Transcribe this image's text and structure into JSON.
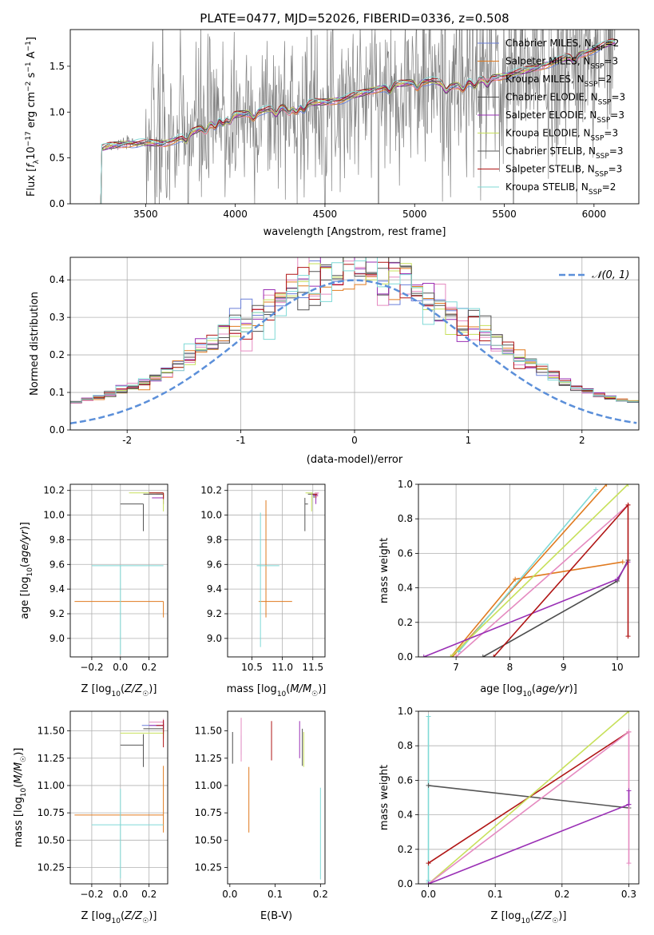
{
  "figure_title": "PLATE=0477, MJD=52026, FIBERID=0336, z=0.508",
  "colors": {
    "data": "#808080",
    "normal": "#5b8fd9",
    "grid": "#b0b0b0",
    "series": [
      "#6a7fd9",
      "#e07a1f",
      "#e58ac0",
      "#4d4d4d",
      "#9a2fb5",
      "#c7e05a",
      "#555555",
      "#b01515",
      "#7fd9d6"
    ]
  },
  "model_series": [
    "Chabrier MILES, N_SSP=2",
    "Salpeter MILES, N_SSP=3",
    "Kroupa MILES, N_SSP=2",
    "Chabrier ELODIE, N_SSP=3",
    "Salpeter ELODIE, N_SSP=3",
    "Kroupa ELODIE, N_SSP=3",
    "Chabrier STELIB, N_SSP=3",
    "Salpeter STELIB, N_SSP=3",
    "Kroupa STELIB, N_SSP=2"
  ],
  "chart_data": [
    {
      "id": "spectrum",
      "type": "line",
      "title": "PLATE=0477, MJD=52026, FIBERID=0336, z=0.508",
      "xlabel": "wavelength [Angstrom, rest frame]",
      "ylabel": "Flux [f_λ 10^-17 erg cm^-2 s^-1 A^-1]",
      "xlim": [
        3080,
        6250
      ],
      "ylim": [
        0,
        1.9
      ],
      "xticks": [
        3500,
        4000,
        4500,
        5000,
        5500,
        6000
      ],
      "yticks": [
        0.0,
        0.5,
        1.0,
        1.5
      ],
      "grid": false,
      "legend": "upper-right",
      "data_range": [
        3220,
        6120
      ],
      "model_continuum": {
        "x": [
          3220,
          3255,
          3256,
          3300,
          3400,
          3500,
          3600,
          3700,
          3800,
          3900,
          4000,
          4100,
          4200,
          4300,
          4400,
          4500,
          4600,
          4700,
          4800,
          4900,
          5000,
          5100,
          5200,
          5300,
          5400,
          5500,
          5600,
          5700,
          5800,
          5900,
          6000,
          6100
        ],
        "y": [
          0.0,
          0.0,
          0.6,
          0.63,
          0.66,
          0.66,
          0.66,
          0.72,
          0.82,
          0.92,
          0.97,
          1.0,
          1.03,
          1.06,
          1.09,
          1.11,
          1.14,
          1.2,
          1.26,
          1.3,
          1.33,
          1.34,
          1.28,
          1.33,
          1.36,
          1.4,
          1.44,
          1.5,
          1.56,
          1.62,
          1.68,
          1.76
        ]
      },
      "series_names": [
        "Chabrier MILES, N_SSP=2",
        "Salpeter MILES, N_SSP=3",
        "Kroupa MILES, N_SSP=2",
        "Chabrier ELODIE, N_SSP=3",
        "Salpeter ELODIE, N_SSP=3",
        "Kroupa ELODIE, N_SSP=3",
        "Chabrier STELIB, N_SSP=3",
        "Salpeter STELIB, N_SSP=3",
        "Kroupa STELIB, N_SSP=2"
      ]
    },
    {
      "id": "residuals",
      "type": "histogram",
      "xlabel": "(data-model)/error",
      "ylabel": "Normed distribution",
      "xlim": [
        -2.5,
        2.5
      ],
      "ylim": [
        0,
        0.46
      ],
      "xticks": [
        -2,
        -1,
        0,
        1,
        2
      ],
      "yticks": [
        0.0,
        0.1,
        0.2,
        0.3,
        0.4
      ],
      "grid": true,
      "legend": "upper-right",
      "normal_label": "𝒩(0, 1)",
      "bin_width": 0.1
    },
    {
      "id": "age-vs-Z",
      "type": "errorbar",
      "xlabel": "Z [log10(Z/Z☉)]",
      "ylabel": "age [log10(age/yr)]",
      "xlim": [
        -0.35,
        0.33
      ],
      "ylim": [
        8.85,
        10.25
      ],
      "xticks": [
        -0.2,
        0.0,
        0.2
      ],
      "yticks": [
        9.0,
        9.2,
        9.4,
        9.6,
        9.8,
        10.0,
        10.2
      ],
      "grid": true,
      "points": [
        {
          "s": 0,
          "x": 0.3,
          "y": 10.18,
          "xe": [
            0.1,
            0.0
          ],
          "ye": [
            0.03,
            0.0
          ]
        },
        {
          "s": 1,
          "x": 0.3,
          "y": 9.3,
          "xe": [
            0.62,
            0.0
          ],
          "ye": [
            0.13,
            0.0
          ]
        },
        {
          "s": 2,
          "x": 0.3,
          "y": 10.17,
          "xe": [
            0.05,
            0.0
          ],
          "ye": [
            0.03,
            0.0
          ]
        },
        {
          "s": 3,
          "x": 0.3,
          "y": 10.17,
          "xe": [
            0.14,
            0.0
          ],
          "ye": [
            0.03,
            0.0
          ]
        },
        {
          "s": 4,
          "x": 0.3,
          "y": 10.14,
          "xe": [
            0.08,
            0.0
          ],
          "ye": [
            0.05,
            0.0
          ]
        },
        {
          "s": 5,
          "x": 0.3,
          "y": 10.18,
          "xe": [
            0.24,
            0.0
          ],
          "ye": [
            0.15,
            0.0
          ]
        },
        {
          "s": 6,
          "x": 0.16,
          "y": 10.09,
          "xe": [
            0.16,
            0.0
          ],
          "ye": [
            0.22,
            0.0
          ]
        },
        {
          "s": 7,
          "x": 0.3,
          "y": 10.18,
          "xe": [
            0.1,
            0.0
          ],
          "ye": [
            0.05,
            0.0
          ]
        },
        {
          "s": 8,
          "x": 0.0,
          "y": 9.59,
          "xe": [
            0.2,
            0.3
          ],
          "ye": [
            0.72,
            0.0
          ]
        }
      ]
    },
    {
      "id": "age-vs-mass",
      "type": "errorbar",
      "xlabel": "mass [log10(M/M☉)]",
      "ylabel": "",
      "xlim": [
        10.1,
        11.7
      ],
      "ylim": [
        8.85,
        10.25
      ],
      "xticks": [
        10.5,
        11.0,
        11.5
      ],
      "yticks": [
        9.0,
        9.2,
        9.4,
        9.6,
        9.8,
        10.0,
        10.2
      ],
      "grid": true,
      "points": [
        {
          "s": 0,
          "x": 11.55,
          "y": 10.16,
          "xe": [
            0.05,
            0.02
          ],
          "ye": [
            0.03,
            0.0
          ]
        },
        {
          "s": 1,
          "x": 10.73,
          "y": 9.3,
          "xe": [
            0.12,
            0.43
          ],
          "ye": [
            0.13,
            0.82
          ]
        },
        {
          "s": 2,
          "x": 11.58,
          "y": 10.18,
          "xe": [
            0.05,
            0.02
          ],
          "ye": [
            0.03,
            0.0
          ]
        },
        {
          "s": 3,
          "x": 11.52,
          "y": 10.17,
          "xe": [
            0.1,
            0.05
          ],
          "ye": [
            0.03,
            0.0
          ]
        },
        {
          "s": 4,
          "x": 11.55,
          "y": 10.16,
          "xe": [
            0.05,
            0.03
          ],
          "ye": [
            0.07,
            0.0
          ]
        },
        {
          "s": 5,
          "x": 11.48,
          "y": 10.18,
          "xe": [
            0.1,
            0.02
          ],
          "ye": [
            0.15,
            0.0
          ]
        },
        {
          "s": 6,
          "x": 11.37,
          "y": 10.09,
          "xe": [
            0.0,
            0.05
          ],
          "ye": [
            0.22,
            0.05
          ]
        },
        {
          "s": 7,
          "x": 11.55,
          "y": 10.17,
          "xe": [
            0.05,
            0.02
          ],
          "ye": [
            0.03,
            0.0
          ]
        },
        {
          "s": 8,
          "x": 10.64,
          "y": 9.59,
          "xe": [
            0.06,
            0.31
          ],
          "ye": [
            0.66,
            0.43
          ]
        }
      ]
    },
    {
      "id": "weight-vs-age",
      "type": "line",
      "xlabel": "age [log10(age/yr)]",
      "ylabel": "mass weight",
      "xlim": [
        6.3,
        10.4
      ],
      "ylim": [
        0.0,
        1.0
      ],
      "xticks": [
        7,
        8,
        9,
        10
      ],
      "yticks": [
        0.0,
        0.2,
        0.4,
        0.6,
        0.8,
        1.0
      ],
      "grid": true,
      "series": [
        {
          "s": 1,
          "x": [
            6.9,
            8.1,
            10.1
          ],
          "y": [
            0.0,
            0.45,
            0.55
          ]
        },
        {
          "s": 1,
          "x": [
            6.93,
            9.8
          ],
          "y": [
            0.0,
            1.0
          ]
        },
        {
          "s": 8,
          "x": [
            7.05,
            9.6
          ],
          "y": [
            0.03,
            0.97
          ]
        },
        {
          "s": 5,
          "x": [
            6.9,
            10.2
          ],
          "y": [
            0.0,
            1.0
          ]
        },
        {
          "s": 2,
          "x": [
            7.0,
            10.2
          ],
          "y": [
            0.0,
            0.88
          ]
        },
        {
          "s": 3,
          "x": [
            7.5,
            10.0,
            10.2
          ],
          "y": [
            0.0,
            0.44,
            0.56
          ]
        },
        {
          "s": 4,
          "x": [
            6.4,
            10.0,
            10.2
          ],
          "y": [
            0.0,
            0.45,
            0.55
          ]
        },
        {
          "s": 7,
          "x": [
            7.7,
            10.2,
            10.2
          ],
          "y": [
            0.0,
            0.88,
            0.12
          ]
        }
      ]
    },
    {
      "id": "mass-vs-Z",
      "type": "errorbar",
      "xlabel": "Z [log10(Z/Z☉)]",
      "ylabel": "mass [log10(M/M☉)]",
      "xlim": [
        -0.35,
        0.33
      ],
      "ylim": [
        10.1,
        11.68
      ],
      "xticks": [
        -0.2,
        0.0,
        0.2
      ],
      "yticks": [
        10.25,
        10.5,
        10.75,
        11.0,
        11.25,
        11.5
      ],
      "grid": true,
      "points": [
        {
          "s": 0,
          "x": 0.3,
          "y": 11.55,
          "xe": [
            0.15,
            0.0
          ],
          "ye": [
            0.03,
            0.02
          ]
        },
        {
          "s": 1,
          "x": 0.3,
          "y": 10.73,
          "xe": [
            0.62,
            0.0
          ],
          "ye": [
            0.16,
            0.45
          ]
        },
        {
          "s": 2,
          "x": 0.3,
          "y": 11.58,
          "xe": [
            0.1,
            0.0
          ],
          "ye": [
            0.04,
            0.03
          ]
        },
        {
          "s": 3,
          "x": 0.3,
          "y": 11.52,
          "xe": [
            0.14,
            0.0
          ],
          "ye": [
            0.05,
            0.04
          ]
        },
        {
          "s": 4,
          "x": 0.3,
          "y": 11.55,
          "xe": [
            0.1,
            0.0
          ],
          "ye": [
            0.06,
            0.04
          ]
        },
        {
          "s": 5,
          "x": 0.3,
          "y": 11.48,
          "xe": [
            0.3,
            0.0
          ],
          "ye": [
            0.05,
            0.04
          ]
        },
        {
          "s": 6,
          "x": 0.16,
          "y": 11.37,
          "xe": [
            0.16,
            0.0
          ],
          "ye": [
            0.2,
            0.1
          ]
        },
        {
          "s": 7,
          "x": 0.3,
          "y": 11.55,
          "xe": [
            0.05,
            0.0
          ],
          "ye": [
            0.2,
            0.05
          ]
        },
        {
          "s": 8,
          "x": 0.0,
          "y": 10.64,
          "xe": [
            0.2,
            0.3
          ],
          "ye": [
            0.49,
            0.33
          ]
        }
      ]
    },
    {
      "id": "mass-vs-ebv",
      "type": "errorbar",
      "xlabel": "E(B-V)",
      "ylabel": "",
      "xlim": [
        -0.005,
        0.21
      ],
      "ylim": [
        10.1,
        11.68
      ],
      "xticks": [
        0.0,
        0.1,
        0.2
      ],
      "yticks": [
        10.25,
        10.5,
        10.75,
        11.0,
        11.25,
        11.5
      ],
      "grid": false,
      "points": [
        {
          "s": 0,
          "x": 0.025,
          "y": 11.36,
          "xe": [
            0,
            0
          ],
          "ye": [
            0.08,
            0.1
          ]
        },
        {
          "s": 1,
          "x": 0.042,
          "y": 10.87,
          "xe": [
            0,
            0
          ],
          "ye": [
            0.3,
            0.3
          ]
        },
        {
          "s": 2,
          "x": 0.025,
          "y": 11.4,
          "xe": [
            0,
            0
          ],
          "ye": [
            0.18,
            0.22
          ]
        },
        {
          "s": 3,
          "x": 0.006,
          "y": 11.33,
          "xe": [
            0,
            0
          ],
          "ye": [
            0.13,
            0.16
          ]
        },
        {
          "s": 4,
          "x": 0.154,
          "y": 11.37,
          "xe": [
            0,
            0
          ],
          "ye": [
            0.12,
            0.22
          ]
        },
        {
          "s": 5,
          "x": 0.163,
          "y": 11.35,
          "xe": [
            0,
            0
          ],
          "ye": [
            0.18,
            0.14
          ]
        },
        {
          "s": 6,
          "x": 0.16,
          "y": 11.3,
          "xe": [
            0,
            0
          ],
          "ye": [
            0.12,
            0.22
          ]
        },
        {
          "s": 7,
          "x": 0.092,
          "y": 11.4,
          "xe": [
            0,
            0
          ],
          "ye": [
            0.17,
            0.19
          ]
        },
        {
          "s": 8,
          "x": 0.2,
          "y": 10.56,
          "xe": [
            0,
            0
          ],
          "ye": [
            0.42,
            0.42
          ]
        }
      ]
    },
    {
      "id": "weight-vs-Z",
      "type": "line",
      "xlabel": "Z [log10(Z/Z☉)]",
      "ylabel": "mass weight",
      "xlim": [
        -0.015,
        0.315
      ],
      "ylim": [
        0.0,
        1.0
      ],
      "xticks": [
        0.0,
        0.1,
        0.2,
        0.3
      ],
      "yticks": [
        0.0,
        0.2,
        0.4,
        0.6,
        0.8,
        1.0
      ],
      "grid": true,
      "series": [
        {
          "s": 8,
          "x": [
            0.0,
            0.0
          ],
          "y": [
            0.0,
            0.97
          ]
        },
        {
          "s": 8,
          "x": [
            0.0,
            0.0
          ],
          "y": [
            0.02,
            0.01
          ]
        },
        {
          "s": 6,
          "x": [
            0.0,
            0.3
          ],
          "y": [
            0.57,
            0.44
          ]
        },
        {
          "s": 7,
          "x": [
            0.0,
            0.3
          ],
          "y": [
            0.12,
            0.88
          ]
        },
        {
          "s": 5,
          "x": [
            0.0,
            0.3
          ],
          "y": [
            0.0,
            1.0
          ]
        },
        {
          "s": 2,
          "x": [
            0.0,
            0.3
          ],
          "y": [
            0.0,
            0.88
          ]
        },
        {
          "s": 4,
          "x": [
            0.0,
            0.3
          ],
          "y": [
            0.0,
            0.46
          ]
        },
        {
          "s": 2,
          "x": [
            0.3,
            0.3
          ],
          "y": [
            0.12,
            0.88
          ]
        },
        {
          "s": 4,
          "x": [
            0.3,
            0.3
          ],
          "y": [
            0.46,
            0.54
          ]
        }
      ]
    }
  ]
}
